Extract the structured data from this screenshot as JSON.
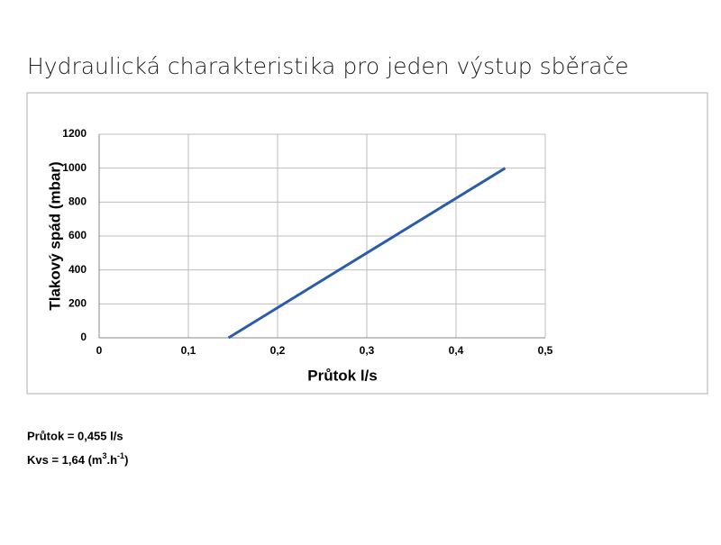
{
  "chart_data": {
    "type": "line",
    "title": "Hydraulická charakteristika pro jeden výstup sběrače",
    "x_label": "Průtok l/s",
    "y_label": "Tlakový spád (mbar)",
    "x": [
      0.145,
      0.455
    ],
    "values": [
      0,
      1000
    ],
    "color": "#2a5caa",
    "xlim": [
      0,
      0.5
    ],
    "xticks": [
      0,
      {
        "value": 0.1,
        "label": "0,1"
      },
      {
        "value": 0.2,
        "label": "0,2"
      },
      {
        "value": 0.3,
        "label": "0,3"
      },
      {
        "value": 0.4,
        "label": "0,4"
      },
      {
        "value": 0.5,
        "label": "0,5"
      }
    ],
    "ylim": [
      0,
      1200
    ],
    "yticks": [
      0,
      200,
      400,
      600,
      800,
      1000,
      1200
    ],
    "grid": true,
    "notes": [
      "Průtok = 0,455 l/s",
      [
        "Kvs = 1,64 (m",
        "3",
        ".h",
        "-1",
        ")"
      ]
    ]
  }
}
